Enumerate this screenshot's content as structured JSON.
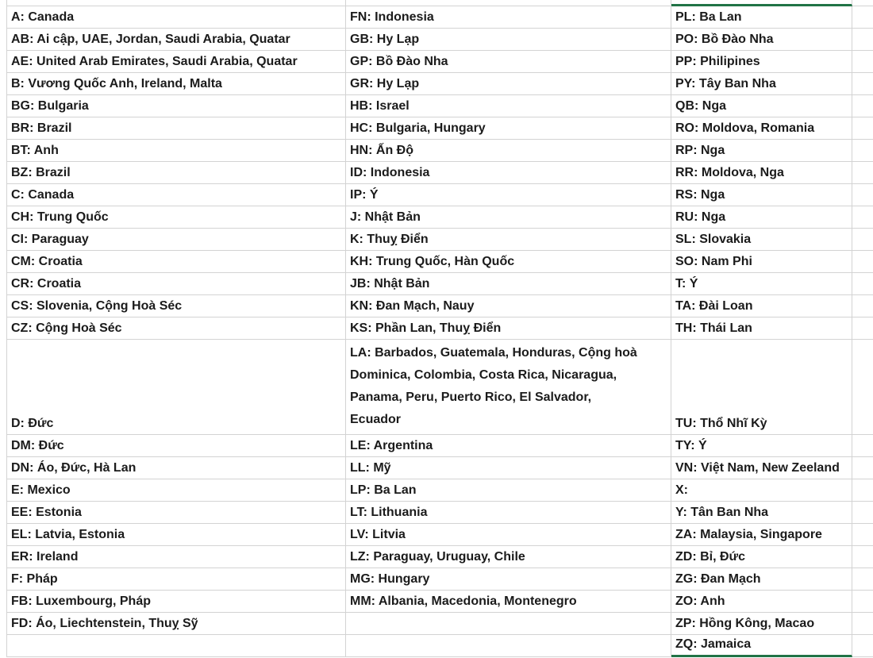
{
  "app": {
    "type": "spreadsheet",
    "description": "Worksheet grid of country-code legend entries"
  },
  "colors": {
    "gridline": "#d3d3d3",
    "selection_border": "#217346",
    "text": "#1b1b1b",
    "background": "#ffffff"
  },
  "selection": {
    "selected_column": 3,
    "border_sides_visible": [
      "top",
      "bottom"
    ],
    "border_color": "#217346"
  },
  "rows": [
    [
      "A: Canada",
      "FN: Indonesia",
      "PL: Ba Lan"
    ],
    [
      "AB: Ai cập, UAE, Jordan, Saudi Arabia, Quatar",
      "GB: Hy Lạp",
      "PO: Bồ Đào Nha"
    ],
    [
      "AE: United Arab Emirates, Saudi Arabia, Quatar",
      "GP: Bồ Đào Nha",
      "PP: Philipines"
    ],
    [
      "B: Vương Quốc Anh, Ireland, Malta",
      "GR: Hy Lạp",
      "PY: Tây Ban Nha"
    ],
    [
      "BG: Bulgaria",
      "HB: Israel",
      "QB: Nga"
    ],
    [
      "BR: Brazil",
      "HC: Bulgaria, Hungary",
      "RO: Moldova, Romania"
    ],
    [
      "BT: Anh",
      "HN: Ấn Độ",
      "RP: Nga"
    ],
    [
      "BZ: Brazil",
      "ID: Indonesia",
      "RR: Moldova, Nga"
    ],
    [
      "C: Canada",
      "IP: Ý",
      "RS: Nga"
    ],
    [
      "CH: Trung Quốc",
      "J: Nhật Bản",
      "RU: Nga"
    ],
    [
      "CI: Paraguay",
      "K: Thuỵ Điển",
      "SL: Slovakia"
    ],
    [
      "CM: Croatia",
      "KH: Trung Quốc, Hàn Quốc",
      "SO: Nam Phi"
    ],
    [
      "CR: Croatia",
      "JB: Nhật Bản",
      "T: Ý"
    ],
    [
      "CS: Slovenia, Cộng Hoà Séc",
      "KN: Đan Mạch, Nauy",
      "TA: Đài Loan"
    ],
    [
      "CZ: Cộng Hoà Séc",
      "KS: Phần Lan, Thuỵ Điển",
      "TH: Thái Lan"
    ],
    [
      "D: Đức",
      "LA: Barbados, Guatemala, Honduras, Cộng hoà Dominica, Colombia, Costa Rica, Nicaragua, Panama, Peru, Puerto Rico, El Salvador, Ecuador",
      "TU: Thổ Nhĩ Kỳ"
    ],
    [
      "DM: Đức",
      "LE: Argentina",
      "TY: Ý"
    ],
    [
      "DN: Áo, Đức, Hà Lan",
      "LL: Mỹ",
      "VN: Việt Nam, New Zeeland"
    ],
    [
      "E: Mexico",
      "LP: Ba Lan",
      "X:"
    ],
    [
      "EE: Estonia",
      "LT: Lithuania",
      "Y: Tân Ban Nha"
    ],
    [
      "EL: Latvia, Estonia",
      "LV: Litvia",
      "ZA: Malaysia, Singapore"
    ],
    [
      "ER: Ireland",
      "LZ: Paraguay, Uruguay, Chile",
      "ZD: Bỉ, Đức"
    ],
    [
      "F: Pháp",
      "MG: Hungary",
      "ZG: Đan Mạch"
    ],
    [
      "FB: Luxembourg, Pháp",
      "MM: Albania, Macedonia, Montenegro",
      "ZO: Anh"
    ],
    [
      "FD: Áo, Liechtenstein, Thuỵ Sỹ",
      "",
      "ZP: Hồng Kông, Macao"
    ],
    [
      "",
      "",
      "ZQ: Jamaica"
    ]
  ]
}
